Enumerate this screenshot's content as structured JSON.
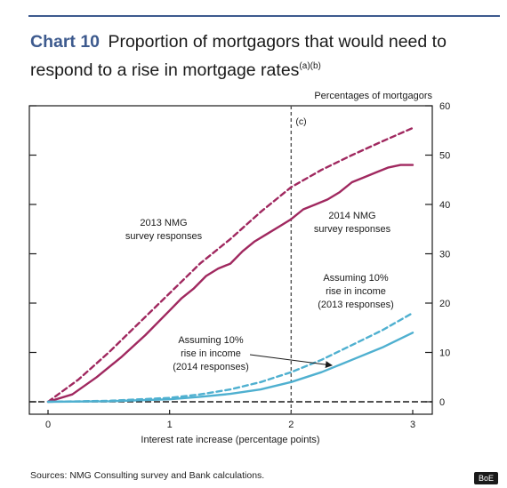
{
  "title": {
    "chart_label": "Chart 10",
    "text": "Proportion of mortgagors that would need to respond to a rise in mortgage rates",
    "footnote_marks": "(a)(b)"
  },
  "source": "Sources:  NMG Consulting survey and Bank calculations.",
  "badge": "BoE",
  "colors": {
    "accent": "#3d5a8e",
    "nmg_line": "#a0285f",
    "income_line": "#4fb0d0"
  },
  "chart_data": {
    "type": "line",
    "title": "Proportion of mortgagors that would need to respond to a rise in mortgage rates",
    "xlabel": "Interest rate increase (percentage points)",
    "ylabel": "Percentages of mortgagors",
    "xlim": [
      0,
      3
    ],
    "ylim": [
      0,
      60
    ],
    "x_ticks": [
      0,
      1,
      2,
      3
    ],
    "y_ticks": [
      0,
      10,
      20,
      30,
      40,
      50,
      60
    ],
    "grid": false,
    "reference_line": {
      "x": 2,
      "label": "(c)",
      "style": "dashed"
    },
    "series": [
      {
        "name": "2013 NMG survey responses",
        "style": "dashed",
        "color": "#a0285f",
        "x": [
          0,
          0.25,
          0.5,
          0.75,
          1.0,
          1.25,
          1.5,
          1.75,
          2.0,
          2.25,
          2.5,
          2.75,
          3.0
        ],
        "y": [
          0,
          4.5,
          10,
          16,
          22,
          28,
          33,
          38.5,
          43.5,
          47,
          50,
          52.8,
          55.5
        ]
      },
      {
        "name": "2014 NMG survey responses",
        "style": "solid",
        "color": "#a0285f",
        "x": [
          0,
          0.2,
          0.4,
          0.6,
          0.8,
          1.0,
          1.1,
          1.2,
          1.3,
          1.4,
          1.5,
          1.6,
          1.7,
          1.8,
          1.9,
          2.0,
          2.1,
          2.2,
          2.3,
          2.4,
          2.5,
          2.6,
          2.7,
          2.8,
          2.9,
          3.0
        ],
        "y": [
          0,
          1.5,
          5,
          9,
          13.5,
          18.5,
          21,
          23,
          25.5,
          27,
          28,
          30.5,
          32.5,
          34,
          35.5,
          37,
          39,
          40,
          41,
          42.5,
          44.5,
          45.5,
          46.5,
          47.5,
          48,
          48
        ]
      },
      {
        "name": "Assuming 10% rise in income (2013 responses)",
        "style": "dashed",
        "color": "#4fb0d0",
        "x": [
          0,
          0.5,
          1.0,
          1.25,
          1.5,
          1.75,
          2.0,
          2.25,
          2.5,
          2.75,
          3.0
        ],
        "y": [
          0,
          0.2,
          0.8,
          1.5,
          2.5,
          4,
          6,
          8.5,
          11.5,
          14.5,
          18
        ]
      },
      {
        "name": "Assuming 10% rise in income (2014 responses)",
        "style": "solid",
        "color": "#4fb0d0",
        "x": [
          0,
          0.5,
          1.0,
          1.25,
          1.5,
          1.75,
          2.0,
          2.25,
          2.5,
          2.75,
          3.0
        ],
        "y": [
          0,
          0.1,
          0.5,
          1,
          1.6,
          2.5,
          4,
          6,
          8.5,
          11,
          14
        ]
      }
    ],
    "annotations": [
      {
        "id": "nmg2013",
        "lines": [
          "2013 NMG",
          "survey responses"
        ]
      },
      {
        "id": "nmg2014",
        "lines": [
          "2014 NMG",
          "survey responses"
        ]
      },
      {
        "id": "inc2013",
        "lines": [
          "Assuming 10%",
          "rise in income",
          "(2013 responses)"
        ]
      },
      {
        "id": "inc2014",
        "lines": [
          "Assuming 10%",
          "rise in income",
          "(2014 responses)"
        ]
      }
    ]
  }
}
